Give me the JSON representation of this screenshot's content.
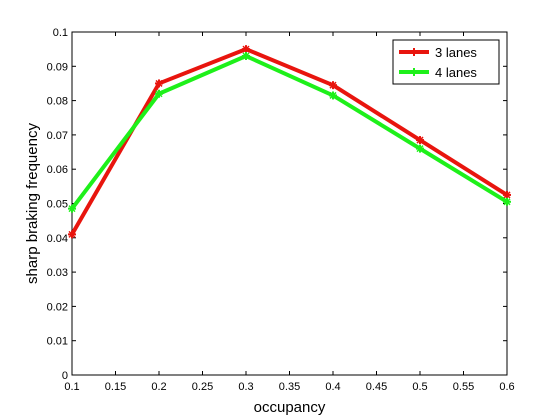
{
  "chart_data": {
    "type": "line",
    "xlabel": "occupancy",
    "ylabel": "sharp braking frequency",
    "xlim": [
      0.1,
      0.6
    ],
    "ylim": [
      0,
      0.1
    ],
    "xticks": [
      "0.1",
      "0.15",
      "0.2",
      "0.25",
      "0.3",
      "0.35",
      "0.4",
      "0.45",
      "0.5",
      "0.55",
      "0.6"
    ],
    "yticks": [
      "0",
      "0.01",
      "0.02",
      "0.03",
      "0.04",
      "0.05",
      "0.06",
      "0.07",
      "0.08",
      "0.09",
      "0.1"
    ],
    "grid": false,
    "legend_position": "top-right",
    "x": [
      0.1,
      0.2,
      0.3,
      0.4,
      0.5,
      0.6
    ],
    "series": [
      {
        "name": "3 lanes",
        "color": "#e8150e",
        "values": [
          0.041,
          0.085,
          0.095,
          0.0845,
          0.0685,
          0.0525
        ]
      },
      {
        "name": "4 lanes",
        "color": "#1ef01a",
        "values": [
          0.0485,
          0.082,
          0.093,
          0.0815,
          0.066,
          0.0505
        ]
      }
    ]
  }
}
